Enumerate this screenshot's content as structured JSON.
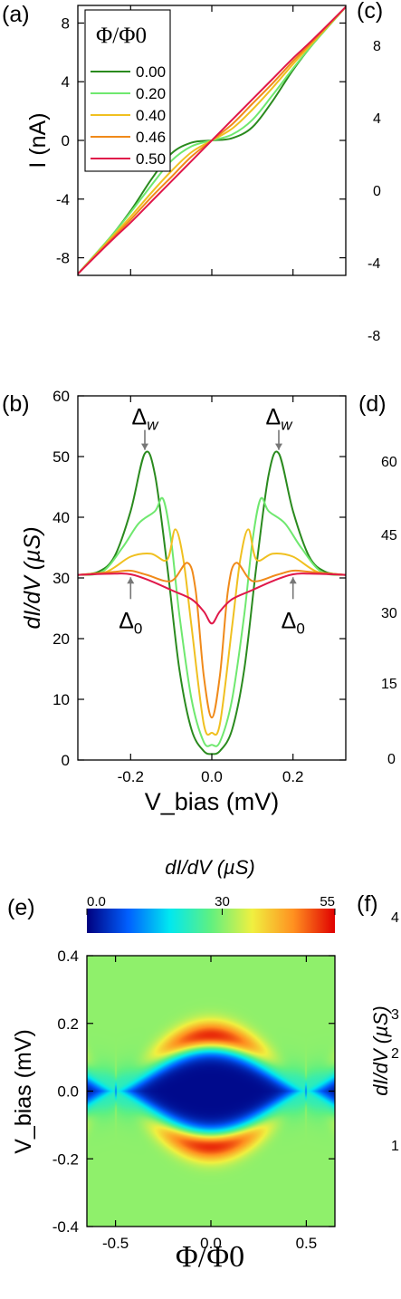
{
  "figure": {
    "panel_labels": {
      "a": "(a)",
      "b": "(b)",
      "c": "(c)",
      "d": "(d)",
      "e": "(e)",
      "f": "(f)"
    },
    "clipped_tick_labels": {
      "c": [
        "8",
        "4",
        "0",
        "-4",
        "-8"
      ],
      "d": [
        "60",
        "45",
        "30",
        "15",
        "0"
      ],
      "f": [
        "4",
        "3",
        "2",
        "1"
      ]
    },
    "clipped_ylabel_f": "dI/dV (µS)"
  },
  "chart_data": [
    {
      "panel": "a",
      "type": "line",
      "ylabel": "I (nA)",
      "xlim": [
        -0.33,
        0.33
      ],
      "ylim": [
        -9.2,
        9.2
      ],
      "xticks": [
        -0.2,
        0.0,
        0.2
      ],
      "xtick_labels": [],
      "yticks": [
        -8,
        -4,
        0,
        4,
        8
      ],
      "ytick_labels": [
        "-8",
        "-4",
        "0",
        "4",
        "8"
      ],
      "legend": {
        "title": "Φ/Φ0",
        "placement": "top-left"
      },
      "series": [
        {
          "name": "0.00",
          "color": "#2a8a1e",
          "points": [
            [
              -0.33,
              -9.1
            ],
            [
              -0.25,
              -6.6
            ],
            [
              -0.2,
              -4.8
            ],
            [
              -0.15,
              -2.7
            ],
            [
              -0.1,
              -0.9
            ],
            [
              -0.05,
              -0.15
            ],
            [
              0,
              0
            ],
            [
              0.05,
              0.15
            ],
            [
              0.1,
              0.9
            ],
            [
              0.15,
              2.7
            ],
            [
              0.2,
              4.8
            ],
            [
              0.25,
              6.6
            ],
            [
              0.33,
              9.1
            ]
          ]
        },
        {
          "name": "0.20",
          "color": "#6fe86f",
          "points": [
            [
              -0.33,
              -9.1
            ],
            [
              -0.25,
              -6.6
            ],
            [
              -0.2,
              -4.9
            ],
            [
              -0.15,
              -3.1
            ],
            [
              -0.1,
              -1.4
            ],
            [
              -0.05,
              -0.4
            ],
            [
              0,
              0
            ],
            [
              0.05,
              0.4
            ],
            [
              0.1,
              1.4
            ],
            [
              0.15,
              3.1
            ],
            [
              0.2,
              4.9
            ],
            [
              0.25,
              6.6
            ],
            [
              0.33,
              9.1
            ]
          ]
        },
        {
          "name": "0.40",
          "color": "#f0c020",
          "points": [
            [
              -0.33,
              -9.1
            ],
            [
              -0.25,
              -6.7
            ],
            [
              -0.2,
              -5.2
            ],
            [
              -0.15,
              -3.6
            ],
            [
              -0.1,
              -2.1
            ],
            [
              -0.05,
              -0.8
            ],
            [
              0,
              0
            ],
            [
              0.05,
              0.8
            ],
            [
              0.1,
              2.1
            ],
            [
              0.15,
              3.6
            ],
            [
              0.2,
              5.2
            ],
            [
              0.25,
              6.7
            ],
            [
              0.33,
              9.1
            ]
          ]
        },
        {
          "name": "0.46",
          "color": "#f08a1a",
          "points": [
            [
              -0.33,
              -9.1
            ],
            [
              -0.25,
              -6.8
            ],
            [
              -0.2,
              -5.4
            ],
            [
              -0.15,
              -3.9
            ],
            [
              -0.1,
              -2.5
            ],
            [
              -0.05,
              -1.1
            ],
            [
              0,
              0
            ],
            [
              0.05,
              1.1
            ],
            [
              0.1,
              2.5
            ],
            [
              0.15,
              3.9
            ],
            [
              0.2,
              5.4
            ],
            [
              0.25,
              6.8
            ],
            [
              0.33,
              9.1
            ]
          ]
        },
        {
          "name": "0.50",
          "color": "#e0184a",
          "points": [
            [
              -0.33,
              -9.1
            ],
            [
              -0.25,
              -6.9
            ],
            [
              -0.2,
              -5.6
            ],
            [
              -0.15,
              -4.2
            ],
            [
              -0.1,
              -2.8
            ],
            [
              -0.05,
              -1.4
            ],
            [
              0,
              0
            ],
            [
              0.05,
              1.4
            ],
            [
              0.1,
              2.8
            ],
            [
              0.15,
              4.2
            ],
            [
              0.2,
              5.6
            ],
            [
              0.25,
              6.9
            ],
            [
              0.33,
              9.1
            ]
          ]
        }
      ]
    },
    {
      "panel": "b",
      "type": "line",
      "ylabel": "dI/dV (µS)",
      "xlabel": "V_bias (mV)",
      "xlim": [
        -0.33,
        0.33
      ],
      "ylim": [
        0,
        60
      ],
      "xticks": [
        -0.2,
        0.0,
        0.2
      ],
      "xtick_labels": [
        "-0.2",
        "0.0",
        "0.2"
      ],
      "yticks": [
        0,
        10,
        20,
        30,
        40,
        50,
        60
      ],
      "ytick_labels": [
        "0",
        "10",
        "20",
        "30",
        "40",
        "50",
        "60"
      ],
      "annotations": [
        {
          "text": "Δw",
          "x": -0.165,
          "y": 50.5,
          "direction": "down"
        },
        {
          "text": "Δw",
          "x": 0.165,
          "y": 50.5,
          "direction": "down"
        },
        {
          "text": "Δ0",
          "x": -0.2,
          "y": 31,
          "direction": "up"
        },
        {
          "text": "Δ0",
          "x": 0.2,
          "y": 31,
          "direction": "up"
        }
      ],
      "series": [
        {
          "name": "0.00",
          "color": "#2a8a1e",
          "points": [
            [
              -0.33,
              30.5
            ],
            [
              -0.28,
              31
            ],
            [
              -0.24,
              33.5
            ],
            [
              -0.2,
              41
            ],
            [
              -0.165,
              50.5
            ],
            [
              -0.14,
              47
            ],
            [
              -0.11,
              32
            ],
            [
              -0.08,
              15
            ],
            [
              -0.05,
              5
            ],
            [
              -0.02,
              1.5
            ],
            [
              0,
              1
            ],
            [
              0.02,
              1.5
            ],
            [
              0.05,
              5
            ],
            [
              0.08,
              15
            ],
            [
              0.11,
              32
            ],
            [
              0.14,
              47
            ],
            [
              0.165,
              50.5
            ],
            [
              0.2,
              41
            ],
            [
              0.24,
              33.5
            ],
            [
              0.28,
              31
            ],
            [
              0.33,
              30.5
            ]
          ]
        },
        {
          "name": "0.20",
          "color": "#6fe86f",
          "points": [
            [
              -0.33,
              30.5
            ],
            [
              -0.27,
              31
            ],
            [
              -0.22,
              35
            ],
            [
              -0.18,
              39
            ],
            [
              -0.14,
              41
            ],
            [
              -0.12,
              43
            ],
            [
              -0.1,
              36
            ],
            [
              -0.08,
              24
            ],
            [
              -0.05,
              10
            ],
            [
              -0.02,
              3
            ],
            [
              0,
              2.5
            ],
            [
              0.02,
              3
            ],
            [
              0.05,
              10
            ],
            [
              0.08,
              24
            ],
            [
              0.1,
              36
            ],
            [
              0.12,
              43
            ],
            [
              0.14,
              41
            ],
            [
              0.18,
              39
            ],
            [
              0.22,
              35
            ],
            [
              0.27,
              31
            ],
            [
              0.33,
              30.5
            ]
          ]
        },
        {
          "name": "0.40",
          "color": "#f0c020",
          "points": [
            [
              -0.33,
              30.5
            ],
            [
              -0.26,
              31
            ],
            [
              -0.2,
              33.5
            ],
            [
              -0.15,
              34
            ],
            [
              -0.11,
              33
            ],
            [
              -0.09,
              38
            ],
            [
              -0.07,
              33
            ],
            [
              -0.05,
              22
            ],
            [
              -0.02,
              6
            ],
            [
              0,
              4.5
            ],
            [
              0.02,
              6
            ],
            [
              0.05,
              22
            ],
            [
              0.07,
              33
            ],
            [
              0.09,
              38
            ],
            [
              0.11,
              33
            ],
            [
              0.15,
              34
            ],
            [
              0.2,
              33.5
            ],
            [
              0.26,
              31
            ],
            [
              0.33,
              30.5
            ]
          ]
        },
        {
          "name": "0.46",
          "color": "#f08a1a",
          "points": [
            [
              -0.33,
              30.5
            ],
            [
              -0.24,
              31
            ],
            [
              -0.2,
              31.2
            ],
            [
              -0.16,
              30.5
            ],
            [
              -0.1,
              29.5
            ],
            [
              -0.06,
              32.5
            ],
            [
              -0.04,
              28
            ],
            [
              -0.02,
              14
            ],
            [
              0,
              7
            ],
            [
              0.02,
              14
            ],
            [
              0.04,
              28
            ],
            [
              0.06,
              32.5
            ],
            [
              0.1,
              29.5
            ],
            [
              0.16,
              30.5
            ],
            [
              0.2,
              31.2
            ],
            [
              0.24,
              31
            ],
            [
              0.33,
              30.5
            ]
          ]
        },
        {
          "name": "0.50",
          "color": "#e0184a",
          "points": [
            [
              -0.33,
              30.5
            ],
            [
              -0.24,
              30.7
            ],
            [
              -0.2,
              30.6
            ],
            [
              -0.15,
              29.5
            ],
            [
              -0.1,
              28
            ],
            [
              -0.05,
              26.5
            ],
            [
              -0.02,
              24.5
            ],
            [
              0,
              22.5
            ],
            [
              0.02,
              24.5
            ],
            [
              0.05,
              26.5
            ],
            [
              0.1,
              28
            ],
            [
              0.15,
              29.5
            ],
            [
              0.2,
              30.6
            ],
            [
              0.24,
              30.7
            ],
            [
              0.33,
              30.5
            ]
          ]
        }
      ]
    },
    {
      "panel": "e",
      "type": "heatmap",
      "title": "dI/dV (µS)",
      "xlabel": "Φ/Φ0",
      "ylabel": "V_bias (mV)",
      "xlim": [
        -0.65,
        0.65
      ],
      "ylim": [
        -0.4,
        0.4
      ],
      "xticks": [
        -0.5,
        0.0,
        0.5
      ],
      "xtick_labels": [
        "-0.5",
        "0.0",
        "0.5"
      ],
      "yticks": [
        -0.4,
        -0.2,
        0.0,
        0.2,
        0.4
      ],
      "ytick_labels": [
        "-0.4",
        "-0.2",
        "0.0",
        "0.2",
        "0.4"
      ],
      "colorbar": {
        "min": 0,
        "max": 55,
        "tick_values": [
          0,
          30,
          55
        ],
        "tick_labels": [
          "0.0",
          "30",
          "55"
        ],
        "colors": [
          "#00007f",
          "#0060ff",
          "#00e8f0",
          "#60f080",
          "#f0f040",
          "#ff9020",
          "#e00000"
        ]
      },
      "model": {
        "background": 30.5,
        "gap_peak_mV": 0.16,
        "gap_period": 1.0
      }
    }
  ]
}
